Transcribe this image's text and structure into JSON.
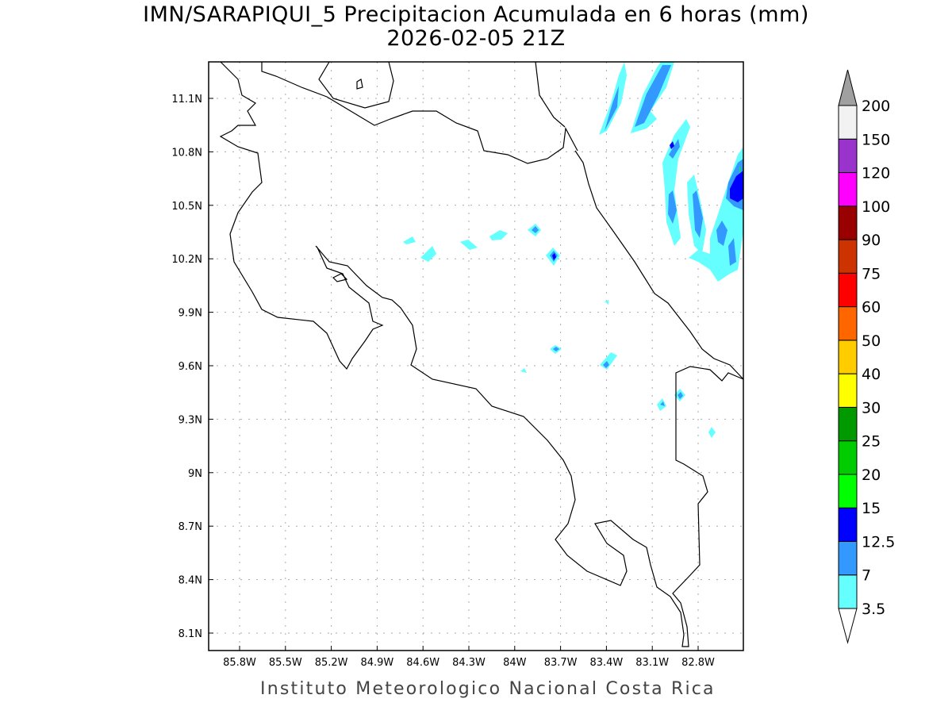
{
  "title": "IMN/SARAPIQUI_5 Precipitacion Acumulada en 6 horas (mm)",
  "subtitle": "2026-02-05 21Z",
  "footer": "Instituto Meteorologico Nacional Costa Rica",
  "map": {
    "lon_labels": [
      "85.8W",
      "85.5W",
      "85.2W",
      "84.9W",
      "84.6W",
      "84.3W",
      "84W",
      "83.7W",
      "83.4W",
      "83.1W",
      "82.8W"
    ],
    "lat_labels": [
      "11.1N",
      "10.8N",
      "10.5N",
      "10.2N",
      "9.9N",
      "9.6N",
      "9.3N",
      "9N",
      "8.7N",
      "8.4N",
      "8.1N"
    ]
  },
  "colorbar": {
    "levels": [
      "3.5",
      "7",
      "12.5",
      "15",
      "20",
      "25",
      "30",
      "40",
      "50",
      "60",
      "75",
      "90",
      "100",
      "120",
      "150",
      "200"
    ],
    "colors": [
      "#66ffff",
      "#3399ff",
      "#0000ff",
      "#00ff00",
      "#00cc00",
      "#009900",
      "#ffff00",
      "#ffcc00",
      "#ff6600",
      "#ff0000",
      "#cc3300",
      "#990000",
      "#ff00ff",
      "#9933cc",
      "#f2f2f2"
    ],
    "over_color": "#a0a0a0",
    "under_color": "#ffffff"
  }
}
